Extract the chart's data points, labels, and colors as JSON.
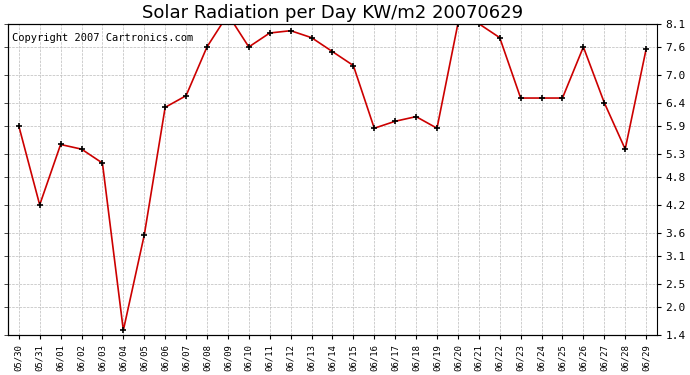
{
  "title": "Solar Radiation per Day KW/m2 20070629",
  "copyright": "Copyright 2007 Cartronics.com",
  "x_labels": [
    "05/30",
    "05/31",
    "06/01",
    "06/02",
    "06/03",
    "06/04",
    "06/05",
    "06/06",
    "06/07",
    "06/08",
    "06/09",
    "06/10",
    "06/11",
    "06/12",
    "06/13",
    "06/14",
    "06/15",
    "06/16",
    "06/17",
    "06/18",
    "06/19",
    "06/20",
    "06/21",
    "06/22",
    "06/23",
    "06/24",
    "06/25",
    "06/26",
    "06/27",
    "06/28",
    "06/29"
  ],
  "y_values": [
    5.9,
    4.2,
    5.5,
    5.4,
    5.1,
    1.5,
    3.55,
    6.3,
    6.55,
    7.6,
    8.3,
    7.6,
    7.9,
    7.95,
    7.8,
    7.5,
    7.2,
    5.85,
    6.0,
    6.1,
    5.85,
    8.1,
    8.1,
    7.8,
    6.5,
    6.5,
    6.5,
    7.6,
    6.4,
    5.4,
    7.55
  ],
  "line_color": "#cc0000",
  "marker_color": "#000000",
  "bg_color": "#ffffff",
  "grid_color": "#bbbbbb",
  "ylim": [
    1.4,
    8.1
  ],
  "yticks": [
    1.4,
    2.0,
    2.5,
    3.1,
    3.6,
    4.2,
    4.8,
    5.3,
    5.9,
    6.4,
    7.0,
    7.6,
    8.1
  ],
  "title_fontsize": 13,
  "copyright_fontsize": 7.5
}
